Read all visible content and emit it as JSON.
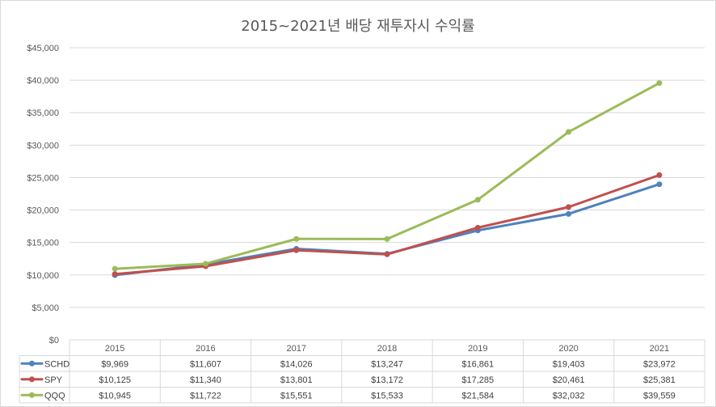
{
  "chart_data": {
    "type": "line",
    "title": "2015~2021년 배당 재투자시 수익률",
    "categories": [
      "2015",
      "2016",
      "2017",
      "2018",
      "2019",
      "2020",
      "2021"
    ],
    "ylim": [
      0,
      45000
    ],
    "yticks": [
      "$0",
      "$5,000",
      "$10,000",
      "$15,000",
      "$20,000",
      "$25,000",
      "$30,000",
      "$35,000",
      "$40,000",
      "$45,000"
    ],
    "grid": true,
    "legend": "data-table",
    "series": [
      {
        "name": "SCHD",
        "color": "#4f81bd",
        "values": [
          9969,
          11607,
          14026,
          13247,
          16861,
          19403,
          23972
        ],
        "labels": [
          "$9,969",
          "$11,607",
          "$14,026",
          "$13,247",
          "$16,861",
          "$19,403",
          "$23,972"
        ]
      },
      {
        "name": "SPY",
        "color": "#c0504d",
        "values": [
          10125,
          11340,
          13801,
          13172,
          17285,
          20461,
          25381
        ],
        "labels": [
          "$10,125",
          "$11,340",
          "$13,801",
          "$13,172",
          "$17,285",
          "$20,461",
          "$25,381"
        ]
      },
      {
        "name": "QQQ",
        "color": "#9bbb59",
        "values": [
          10945,
          11722,
          15551,
          15533,
          21584,
          32032,
          39559
        ],
        "labels": [
          "$10,945",
          "$11,722",
          "$15,551",
          "$15,533",
          "$21,584",
          "$32,032",
          "$39,559"
        ]
      }
    ]
  }
}
